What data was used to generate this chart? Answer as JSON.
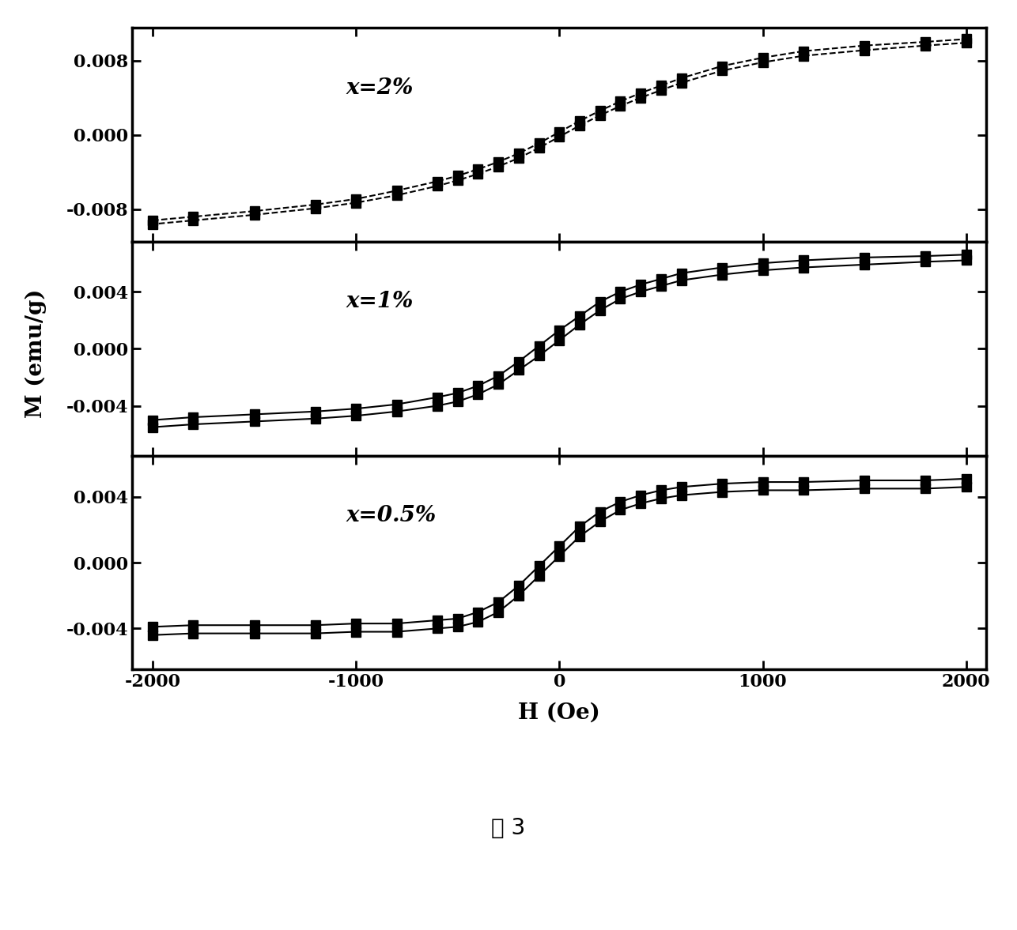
{
  "figure_caption": "图 3",
  "xlabel": "H (Oe)",
  "ylabel": "M (emu/g)",
  "panels": [
    {
      "label": "x=2%",
      "ylim": [
        -0.0115,
        0.0115
      ],
      "yticks": [
        -0.008,
        0.0,
        0.008
      ],
      "ytick_labels": [
        "-0.008",
        "0.000",
        "0.008"
      ],
      "sweep1_H": [
        -2000,
        -1800,
        -1500,
        -1200,
        -1000,
        -800,
        -600,
        -500,
        -400,
        -300,
        -200,
        -100,
        0,
        100,
        200,
        300,
        400,
        500,
        600,
        800,
        1000,
        1200,
        1500,
        1800,
        2000
      ],
      "sweep1_M": [
        -0.0096,
        -0.0092,
        -0.0086,
        -0.0079,
        -0.0073,
        -0.0065,
        -0.0055,
        -0.0049,
        -0.0042,
        -0.0034,
        -0.0025,
        -0.0014,
        -0.0002,
        0.001,
        0.0021,
        0.0031,
        0.004,
        0.0048,
        0.0056,
        0.0069,
        0.0078,
        0.0085,
        0.0091,
        0.0096,
        0.0099
      ],
      "sweep2_H": [
        -2000,
        -1800,
        -1500,
        -1200,
        -1000,
        -800,
        -600,
        -500,
        -400,
        -300,
        -200,
        -100,
        0,
        100,
        200,
        300,
        400,
        500,
        600,
        800,
        1000,
        1200,
        1500,
        1800,
        2000
      ],
      "sweep2_M": [
        -0.0092,
        -0.0088,
        -0.0082,
        -0.0075,
        -0.0069,
        -0.006,
        -0.005,
        -0.0044,
        -0.0037,
        -0.0029,
        -0.002,
        -0.0009,
        0.0003,
        0.0015,
        0.0026,
        0.0036,
        0.0045,
        0.0053,
        0.0061,
        0.0074,
        0.0083,
        0.009,
        0.0096,
        0.01,
        0.0103
      ]
    },
    {
      "label": "x=1%",
      "ylim": [
        -0.0075,
        0.0075
      ],
      "yticks": [
        -0.004,
        0.0,
        0.004
      ],
      "ytick_labels": [
        "-0.004",
        "0.000",
        "0.004"
      ],
      "sweep1_H": [
        -2000,
        -1800,
        -1500,
        -1200,
        -1000,
        -800,
        -600,
        -500,
        -400,
        -300,
        -200,
        -100,
        0,
        100,
        200,
        300,
        400,
        500,
        600,
        800,
        1000,
        1200,
        1500,
        1800,
        2000
      ],
      "sweep1_M": [
        -0.0055,
        -0.0053,
        -0.0051,
        -0.0049,
        -0.0047,
        -0.0044,
        -0.004,
        -0.0037,
        -0.0032,
        -0.0025,
        -0.0015,
        -0.0005,
        0.0006,
        0.0017,
        0.0027,
        0.0035,
        0.004,
        0.0044,
        0.0048,
        0.0052,
        0.0055,
        0.0057,
        0.0059,
        0.0061,
        0.0062
      ],
      "sweep2_H": [
        -2000,
        -1800,
        -1500,
        -1200,
        -1000,
        -800,
        -600,
        -500,
        -400,
        -300,
        -200,
        -100,
        0,
        100,
        200,
        300,
        400,
        500,
        600,
        800,
        1000,
        1200,
        1500,
        1800,
        2000
      ],
      "sweep2_M": [
        -0.005,
        -0.0048,
        -0.0046,
        -0.0044,
        -0.0042,
        -0.0039,
        -0.0034,
        -0.0031,
        -0.0026,
        -0.0019,
        -0.0009,
        0.0002,
        0.0013,
        0.0023,
        0.0033,
        0.004,
        0.0045,
        0.0049,
        0.0053,
        0.0057,
        0.006,
        0.0062,
        0.0064,
        0.0065,
        0.0066
      ]
    },
    {
      "label": "x=0.5%",
      "ylim": [
        -0.0065,
        0.0065
      ],
      "yticks": [
        -0.004,
        0.0,
        0.004
      ],
      "ytick_labels": [
        "-0.004",
        "0.000",
        "0.004"
      ],
      "sweep1_H": [
        -2000,
        -1800,
        -1500,
        -1200,
        -1000,
        -800,
        -600,
        -500,
        -400,
        -300,
        -200,
        -100,
        0,
        100,
        200,
        300,
        400,
        500,
        600,
        800,
        1000,
        1200,
        1500,
        1800,
        2000
      ],
      "sweep1_M": [
        -0.0044,
        -0.0043,
        -0.0043,
        -0.0043,
        -0.0042,
        -0.0042,
        -0.004,
        -0.0039,
        -0.0036,
        -0.003,
        -0.002,
        -0.0008,
        0.0004,
        0.0016,
        0.0025,
        0.0032,
        0.0036,
        0.0039,
        0.0041,
        0.0043,
        0.0044,
        0.0044,
        0.0045,
        0.0045,
        0.0046
      ],
      "sweep2_H": [
        -2000,
        -1800,
        -1500,
        -1200,
        -1000,
        -800,
        -600,
        -500,
        -400,
        -300,
        -200,
        -100,
        0,
        100,
        200,
        300,
        400,
        500,
        600,
        800,
        1000,
        1200,
        1500,
        1800,
        2000
      ],
      "sweep2_M": [
        -0.0039,
        -0.0038,
        -0.0038,
        -0.0038,
        -0.0037,
        -0.0037,
        -0.0035,
        -0.0034,
        -0.003,
        -0.0024,
        -0.0014,
        -0.0002,
        0.001,
        0.0022,
        0.0031,
        0.0037,
        0.0041,
        0.0044,
        0.0046,
        0.0048,
        0.0049,
        0.0049,
        0.005,
        0.005,
        0.0051
      ]
    }
  ],
  "xlim": [
    -2100,
    2100
  ],
  "xticks": [
    -2000,
    -1000,
    0,
    1000,
    2000
  ],
  "line_color": "#000000",
  "marker": "s",
  "marker_size": 8,
  "line_width": 1.5,
  "line_style": "--",
  "solid_line_style": "-",
  "bg_color": "#ffffff",
  "label_fontsize": 20,
  "tick_fontsize": 16,
  "annotation_fontsize": 20,
  "caption_fontsize": 20
}
